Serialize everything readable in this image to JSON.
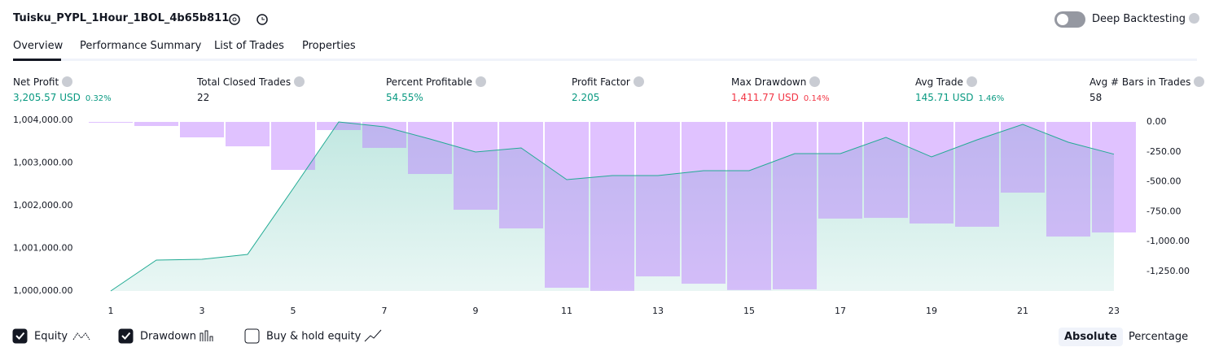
{
  "header": {
    "title": "Tuisku_PYPL_1Hour_1BOL_4b65b811",
    "deep_backtesting": "Deep Backtesting"
  },
  "tabs": [
    "Overview",
    "Performance Summary",
    "List of Trades",
    "Properties"
  ],
  "metrics": [
    {
      "label": "Net Profit",
      "value": "3,205.57 USD",
      "percent": "0.32%"
    },
    {
      "label": "Total Closed Trades",
      "value": "22"
    },
    {
      "label": "Percent Profitable",
      "value": "54.55%"
    },
    {
      "label": "Profit Factor",
      "value": "2.205"
    },
    {
      "label": "Max Drawdown",
      "value": "1,411.77 USD",
      "percent": "0.14%"
    },
    {
      "label": "Avg Trade",
      "value": "145.71 USD",
      "percent": "1.46%"
    },
    {
      "label": "Avg # Bars in Trades",
      "value": "58"
    }
  ],
  "chart_data": {
    "type": "combo",
    "x": [
      1,
      2,
      3,
      4,
      5,
      6,
      7,
      8,
      9,
      10,
      11,
      12,
      13,
      14,
      15,
      16,
      17,
      18,
      19,
      20,
      21,
      22,
      23
    ],
    "xlim": [
      0.5,
      23.5
    ],
    "xticks": [
      1,
      3,
      5,
      7,
      9,
      11,
      13,
      15,
      17,
      19,
      21,
      23
    ],
    "series": [
      {
        "name": "Equity",
        "type": "area",
        "color": "#22ab94",
        "values": [
          1000000,
          1000724,
          1000743,
          1000857,
          1002400,
          1003962,
          1003848,
          1003562,
          1003257,
          1003352,
          1002610,
          1002705,
          1002705,
          1002819,
          1002819,
          1003219,
          1003219,
          1003600,
          1003143,
          1003543,
          1003905,
          1003486,
          1003206
        ]
      },
      {
        "name": "Drawdown",
        "type": "bar",
        "axis": "y2",
        "color": "#bb78ff",
        "values": [
          -7,
          -34,
          -129,
          -204,
          -401,
          -68,
          -217,
          -435,
          -734,
          -890,
          -1386,
          -1412,
          -1291,
          -1352,
          -1405,
          -1399,
          -808,
          -802,
          -849,
          -876,
          -591,
          -958,
          -924
        ]
      }
    ],
    "ylim": [
      1000000,
      1003962
    ],
    "yticks": [
      {
        "value": 1000000,
        "label": "1,000,000.00"
      },
      {
        "value": 1001000,
        "label": "1,001,000.00"
      },
      {
        "value": 1002000,
        "label": "1,002,000.00"
      },
      {
        "value": 1003000,
        "label": "1,003,000.00"
      },
      {
        "value": 1004000,
        "label": "1,004,000.00"
      }
    ],
    "y2lim": [
      -1413,
      0
    ],
    "y2ticks": [
      {
        "value": 0,
        "label": "0.00"
      },
      {
        "value": -250,
        "label": "-250.00"
      },
      {
        "value": -500,
        "label": "-500.00"
      },
      {
        "value": -750,
        "label": "-750.00"
      },
      {
        "value": -1000,
        "label": "-1,000.00"
      },
      {
        "value": -1250,
        "label": "-1,250.00"
      }
    ],
    "extra_legend": "Buy & hold equity"
  },
  "view_buttons": [
    "Absolute",
    "Percentage"
  ]
}
